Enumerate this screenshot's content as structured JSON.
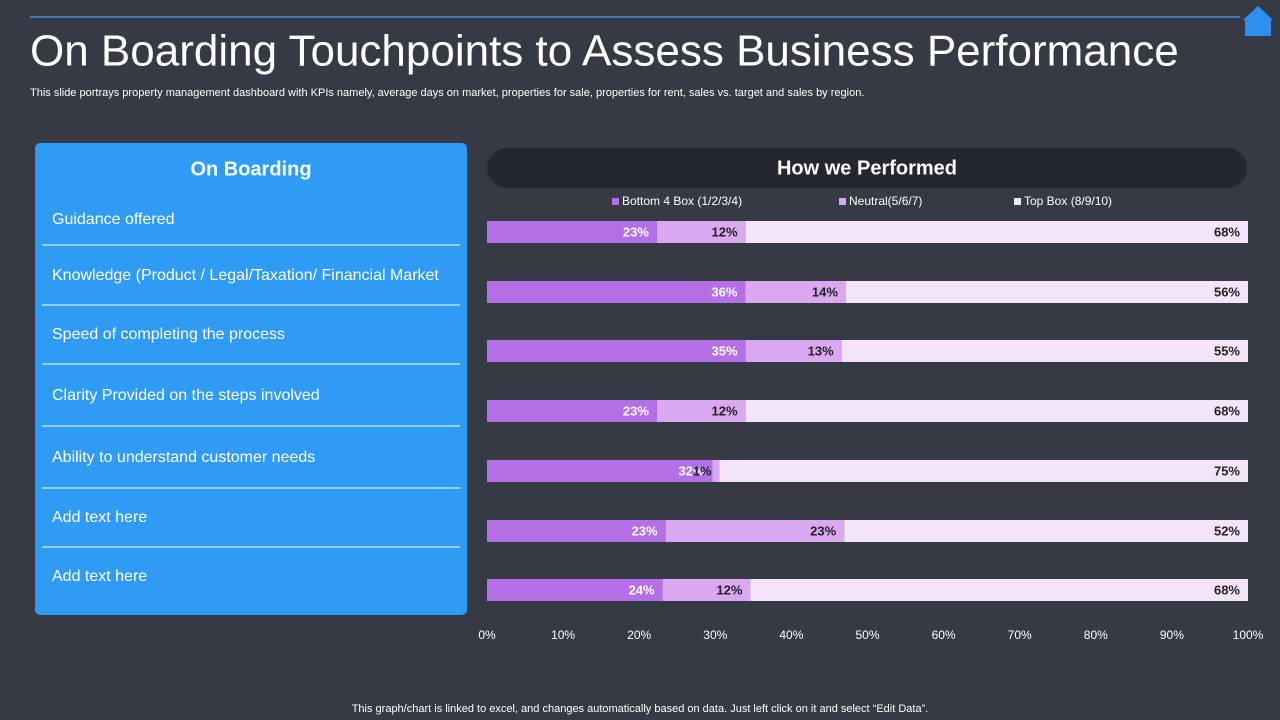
{
  "header": {
    "title": "On Boarding Touchpoints to Assess Business Performance",
    "subtitle": "This slide portrays property management dashboard with KPIs namely, average days on market, properties for sale, properties for rent, sales vs. target and sales by region.",
    "footer": "This graph/chart is linked to excel,  and changes automatically based on data. Just left click on it and select “Edit Data”."
  },
  "panel": {
    "title": "On Boarding"
  },
  "chart_data": {
    "type": "bar",
    "orientation": "horizontal",
    "stacked": "percent",
    "title": "How we Performed",
    "categories": [
      "Guidance offered",
      "Knowledge (Product / Legal/Taxation/  Financial Market",
      "Speed of completing the process",
      "Clarity Provided on the steps involved",
      "Ability to understand  customer needs",
      "Add text here",
      "Add text here"
    ],
    "series": [
      {
        "name": "Bottom 4 Box (1/2/3/4)",
        "color": "#b46fe6",
        "label_color": "#ffffff",
        "values": [
          23,
          36,
          35,
          23,
          32,
          23,
          24
        ],
        "value_labels": [
          "23%",
          "36%",
          "35%",
          "23%",
          "32%",
          "23%",
          "24%"
        ]
      },
      {
        "name": "Neutral(5/6/7)",
        "color": "#d9a8f0",
        "label_color": "#222222",
        "values": [
          12,
          14,
          13,
          12,
          1,
          23,
          12
        ],
        "value_labels": [
          "12%",
          "14%",
          "13%",
          "12%",
          "1%",
          "23%",
          "12%"
        ]
      },
      {
        "name": "Top Box (8/9/10)",
        "color": "#f4e4fa",
        "label_color": "#222222",
        "values": [
          68,
          56,
          55,
          68,
          75,
          52,
          68
        ],
        "value_labels": [
          "68%",
          "56%",
          "55%",
          "68%",
          "75%",
          "52%",
          "68%"
        ]
      }
    ],
    "xlim": [
      0,
      100
    ],
    "xticks": [
      {
        "value": 0,
        "label": "0%"
      },
      {
        "value": 10,
        "label": "10%"
      },
      {
        "value": 20,
        "label": "20%"
      },
      {
        "value": 30,
        "label": "30%"
      },
      {
        "value": 40,
        "label": "40%"
      },
      {
        "value": 50,
        "label": "50%"
      },
      {
        "value": 60,
        "label": "60%"
      },
      {
        "value": 70,
        "label": "70%"
      },
      {
        "value": 80,
        "label": "80%"
      },
      {
        "value": 90,
        "label": "90%"
      },
      {
        "value": 100,
        "label": "100%"
      }
    ],
    "legend": "top"
  }
}
